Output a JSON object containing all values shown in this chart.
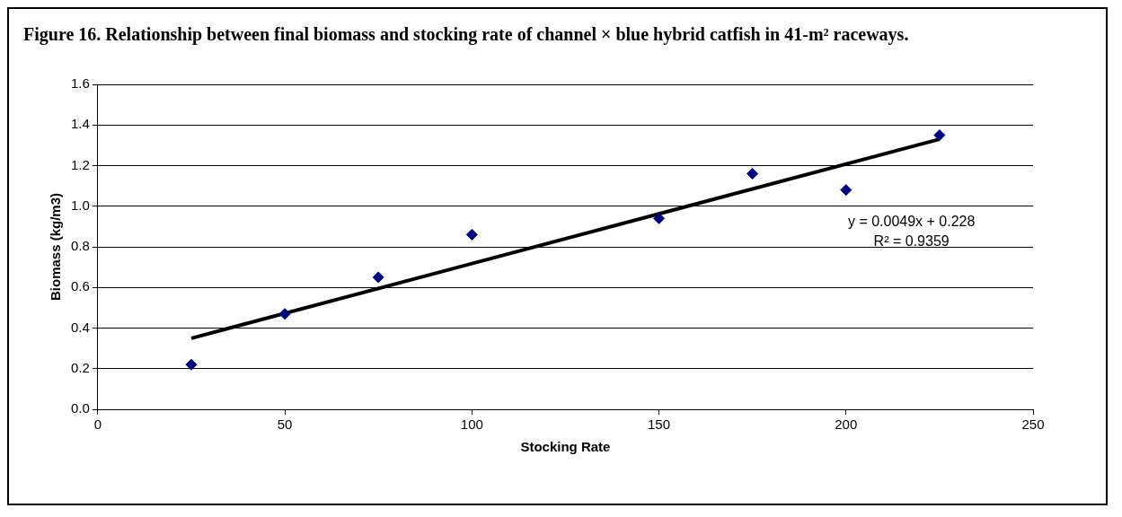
{
  "chart_data": {
    "type": "scatter",
    "title": "Figure 16. Relationship between final biomass and stocking rate of channel × blue hybrid catfish in 41-m² raceways.",
    "xlabel": "Stocking Rate",
    "ylabel": "Biomass (kg/m3)",
    "x": [
      25,
      50,
      75,
      100,
      150,
      175,
      200,
      225
    ],
    "series": [
      {
        "type": "scatter",
        "color": "#000080",
        "marker": "diamond",
        "values": [
          0.22,
          0.47,
          0.65,
          0.86,
          0.94,
          1.16,
          1.08,
          1.35
        ]
      },
      {
        "type": "line",
        "color": "#000000",
        "marker": "none",
        "x": [
          25,
          225
        ],
        "values": [
          0.35,
          1.33
        ]
      }
    ],
    "annotations": [
      "y = 0.0049x + 0.228",
      "R² = 0.9359"
    ],
    "xlim": [
      0,
      250
    ],
    "xticks": [
      0,
      50,
      100,
      150,
      200,
      250
    ],
    "ylim": [
      0,
      1.6
    ],
    "yticks": [
      {
        "value": 0,
        "label": "0.0"
      },
      {
        "value": 0.2,
        "label": "0.2"
      },
      {
        "value": 0.4,
        "label": "0.4"
      },
      {
        "value": 0.6,
        "label": "0.6"
      },
      {
        "value": 0.8,
        "label": "0.8"
      },
      {
        "value": 1,
        "label": "1.0"
      },
      {
        "value": 1.2,
        "label": "1.2"
      },
      {
        "value": 1.4,
        "label": "1.4"
      },
      {
        "value": 1.6,
        "label": "1.6"
      }
    ],
    "grid": "y",
    "legend": false
  }
}
